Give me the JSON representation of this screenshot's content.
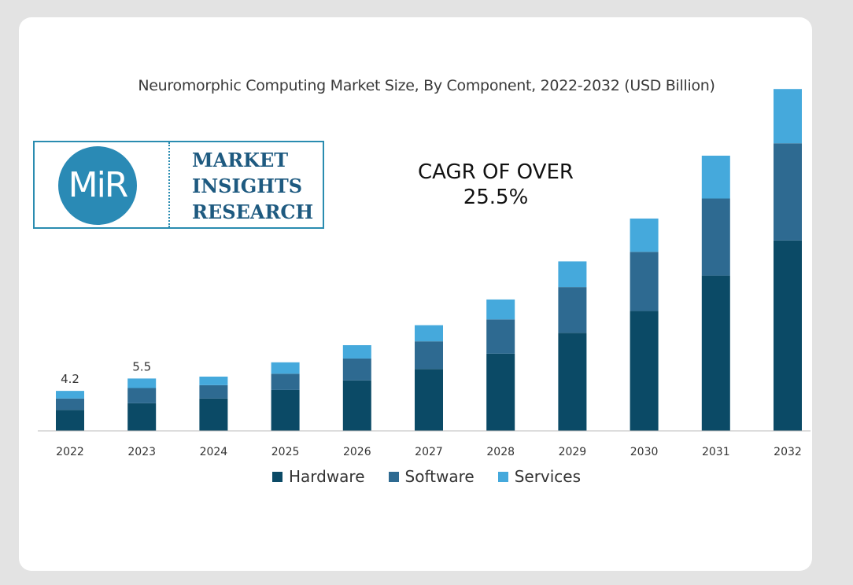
{
  "logo": {
    "mark": "MiR",
    "lines": [
      "MARKET",
      "INSIGHTS",
      "RESEARCH"
    ]
  },
  "annotation": {
    "line1": "CAGR OF OVER",
    "line2": "25.5%"
  },
  "chart_data": {
    "type": "bar",
    "stacked": true,
    "title": "Neuromorphic Computing Market Size, By Component, 2022-2032 (USD Billion)",
    "categories": [
      "2022",
      "2023",
      "2024",
      "2025",
      "2026",
      "2027",
      "2028",
      "2029",
      "2030",
      "2031",
      "2032"
    ],
    "series": [
      {
        "name": "Hardware",
        "color": "#0b4a66",
        "values": [
          2.2,
          2.9,
          3.4,
          4.3,
          5.3,
          6.5,
          8.1,
          10.3,
          12.6,
          16.3,
          20.0
        ]
      },
      {
        "name": "Software",
        "color": "#2e6a91",
        "values": [
          1.2,
          1.6,
          1.4,
          1.7,
          2.3,
          2.9,
          3.6,
          4.8,
          6.2,
          8.1,
          10.2
        ]
      },
      {
        "name": "Services",
        "color": "#45a9dc",
        "values": [
          0.8,
          1.0,
          0.9,
          1.2,
          1.4,
          1.7,
          2.1,
          2.7,
          3.5,
          4.5,
          5.7
        ]
      }
    ],
    "data_labels": [
      "4.2",
      "5.5",
      "",
      "",
      "",
      "",
      "",
      "",
      "",
      "",
      ""
    ],
    "ylim": [
      0,
      36
    ],
    "grid": false,
    "legend": "bottom"
  }
}
